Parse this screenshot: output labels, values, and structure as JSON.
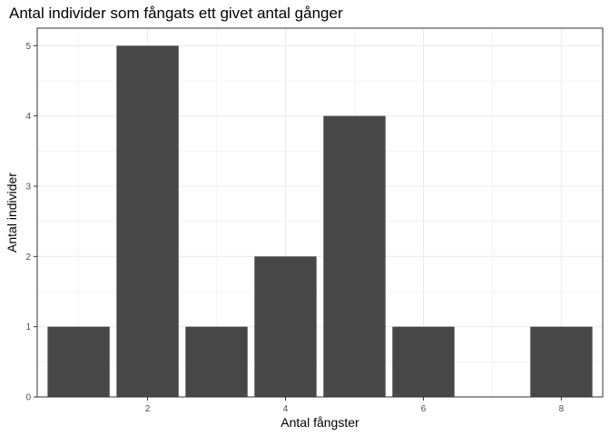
{
  "chart_data": {
    "type": "bar",
    "title": "Antal individer som fångats ett givet antal gånger",
    "xlabel": "Antal fångster",
    "ylabel": "Antal individer",
    "x": [
      1,
      2,
      3,
      4,
      5,
      6,
      8
    ],
    "values": [
      1,
      5,
      1,
      2,
      4,
      1,
      1
    ],
    "xlim": [
      0.4,
      8.6
    ],
    "ylim": [
      0,
      5.25
    ],
    "xticks": [
      2,
      4,
      6,
      8
    ],
    "yticks": [
      0,
      1,
      2,
      3,
      4,
      5
    ],
    "grid": true,
    "bar_color": "#474747",
    "panel_border_color": "#333333",
    "grid_color": "#ebebeb"
  }
}
